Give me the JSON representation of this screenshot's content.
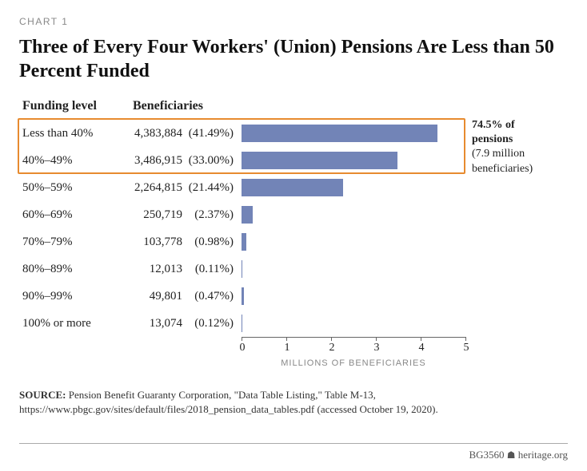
{
  "chart_label": "CHART 1",
  "title": "Three of Every Four Workers' (Union) Pensions Are Less than 50 Percent Funded",
  "headers": {
    "funding": "Funding level",
    "beneficiaries": "Beneficiaries"
  },
  "bar_color": "#7284b7",
  "highlight_color": "#e78b2f",
  "x_axis": {
    "min": 0,
    "max": 5,
    "ticks": [
      0,
      1,
      2,
      3,
      4,
      5
    ],
    "title": "MILLIONS OF BENEFICIARIES"
  },
  "rows": [
    {
      "cat": "Less than 40%",
      "num": "4,383,884",
      "pct": "(41.49%)",
      "value": 4.383884
    },
    {
      "cat": "40%–49%",
      "num": "3,486,915",
      "pct": "(33.00%)",
      "value": 3.486915
    },
    {
      "cat": "50%–59%",
      "num": "2,264,815",
      "pct": "(21.44%)",
      "value": 2.264815
    },
    {
      "cat": "60%–69%",
      "num": "250,719",
      "pct": "(2.37%)",
      "value": 0.250719
    },
    {
      "cat": "70%–79%",
      "num": "103,778",
      "pct": "(0.98%)",
      "value": 0.103778
    },
    {
      "cat": "80%–89%",
      "num": "12,013",
      "pct": "(0.11%)",
      "value": 0.012013
    },
    {
      "cat": "90%–99%",
      "num": "49,801",
      "pct": "(0.47%)",
      "value": 0.049801
    },
    {
      "cat": "100% or more",
      "num": "13,074",
      "pct": "(0.12%)",
      "value": 0.013074
    }
  ],
  "highlight": {
    "row_start": 0,
    "row_end": 1
  },
  "annotation": {
    "bold1": "74.5% of",
    "bold2": "pensions",
    "rest": "(7.9 million beneficiaries)"
  },
  "source_label": "SOURCE:",
  "source_text": "Pension Benefit Guaranty Corporation, \"Data Table Listing,\" Table M-13, https://www.pbgc.gov/sites/default/files/2018_pension_data_tables.pdf (accessed October 19, 2020).",
  "footer_id": "BG3560",
  "footer_site": "heritage.org"
}
